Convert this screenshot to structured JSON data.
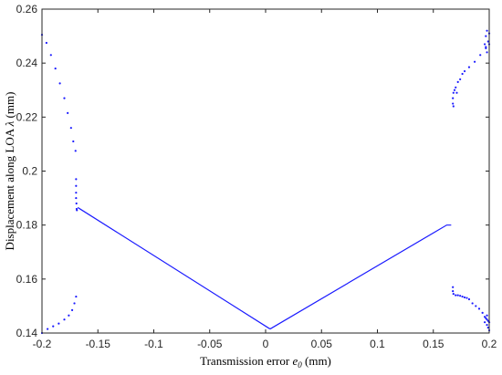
{
  "chart_data": {
    "type": "scatter",
    "title": "",
    "xlabel": {
      "prefix": "Transmission error ",
      "symbol": "e",
      "subscript": "0",
      "suffix": " (mm)"
    },
    "ylabel": {
      "prefix": "Displacement along LOA ",
      "symbol": "λ",
      "suffix": " (mm)"
    },
    "xlim": [
      -0.2,
      0.2
    ],
    "ylim": [
      0.14,
      0.26
    ],
    "xticks": [
      -0.2,
      -0.15,
      -0.1,
      -0.05,
      0,
      0.05,
      0.1,
      0.15,
      0.2
    ],
    "xtick_labels": [
      "-0.2",
      "-0.15",
      "-0.1",
      "-0.05",
      "0",
      "0.05",
      "0.1",
      "0.15",
      "0.2"
    ],
    "yticks": [
      0.14,
      0.16,
      0.18,
      0.2,
      0.22,
      0.24,
      0.26
    ],
    "ytick_labels": [
      "0.14",
      "0.16",
      "0.18",
      "0.2",
      "0.22",
      "0.24",
      "0.26"
    ],
    "grid": false,
    "color": "#1a1aff",
    "series": [
      {
        "kind": "line",
        "x": [
          -0.168,
          0.004
        ],
        "y": [
          0.1865,
          0.1415
        ]
      },
      {
        "kind": "line",
        "x": [
          0.004,
          0.162,
          0.166
        ],
        "y": [
          0.1415,
          0.18,
          0.18
        ]
      },
      {
        "kind": "points",
        "x": [
          -0.2,
          -0.196,
          -0.192,
          -0.188,
          -0.184,
          -0.18,
          -0.177,
          -0.174,
          -0.172,
          -0.17
        ],
        "y": [
          0.2505,
          0.2475,
          0.243,
          0.238,
          0.2325,
          0.227,
          0.2215,
          0.216,
          0.211,
          0.2075
        ]
      },
      {
        "kind": "points",
        "x": [
          -0.1695,
          -0.1695,
          -0.1695,
          -0.1695,
          -0.1692,
          -0.169,
          -0.1688
        ],
        "y": [
          0.197,
          0.1945,
          0.192,
          0.19,
          0.188,
          0.186,
          0.1855
        ]
      },
      {
        "kind": "points",
        "x": [
          -0.2,
          -0.195,
          -0.19,
          -0.185,
          -0.18,
          -0.176,
          -0.173,
          -0.171,
          -0.1695
        ],
        "y": [
          0.14,
          0.1415,
          0.1425,
          0.1435,
          0.145,
          0.1465,
          0.1485,
          0.151,
          0.1535
        ]
      },
      {
        "kind": "points",
        "x": [
          0.1675,
          0.1675,
          0.168,
          0.168,
          0.169,
          0.17,
          0.171,
          0.172,
          0.174,
          0.176,
          0.178,
          0.182,
          0.187,
          0.192,
          0.197,
          0.2
        ],
        "y": [
          0.225,
          0.227,
          0.229,
          0.224,
          0.23,
          0.231,
          0.229,
          0.233,
          0.234,
          0.236,
          0.237,
          0.2385,
          0.2405,
          0.243,
          0.246,
          0.251
        ]
      },
      {
        "kind": "points",
        "x": [
          0.196,
          0.197,
          0.198,
          0.199,
          0.2,
          0.198,
          0.197
        ],
        "y": [
          0.247,
          0.25,
          0.252,
          0.248,
          0.247,
          0.244,
          0.2455
        ]
      },
      {
        "kind": "points",
        "x": [
          0.1675,
          0.1675,
          0.168,
          0.17,
          0.172,
          0.174,
          0.176,
          0.178,
          0.18,
          0.182,
          0.185,
          0.188,
          0.191,
          0.194,
          0.196,
          0.198,
          0.2
        ],
        "y": [
          0.157,
          0.1555,
          0.1545,
          0.154,
          0.154,
          0.1538,
          0.1535,
          0.1532,
          0.153,
          0.1525,
          0.151,
          0.15,
          0.149,
          0.1475,
          0.146,
          0.145,
          0.144
        ]
      },
      {
        "kind": "points",
        "x": [
          0.196,
          0.197,
          0.198,
          0.199,
          0.2,
          0.199,
          0.198
        ],
        "y": [
          0.144,
          0.1455,
          0.143,
          0.142,
          0.141,
          0.1445,
          0.1465
        ]
      }
    ]
  }
}
